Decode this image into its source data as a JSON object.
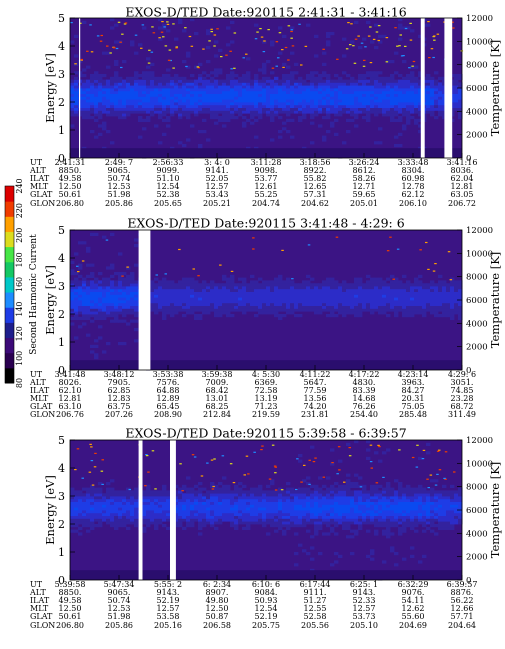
{
  "colorbar": {
    "label": "Second Harmonic Current",
    "ticks": [
      "80",
      "100",
      "120",
      "140",
      "160",
      "180",
      "200",
      "220",
      "240"
    ],
    "colors": [
      "#000000",
      "#2a0050",
      "#3c0a78",
      "#1e1e8c",
      "#1e3ce6",
      "#1e8cff",
      "#00c8c8",
      "#14c864",
      "#46e646",
      "#dcdc1e",
      "#ffa000",
      "#f03c00",
      "#dc0000"
    ]
  },
  "chart_data": [
    {
      "type": "heatmap",
      "title": "EXOS-D/TED   Date:920115  2:41:31 - 3:41:16",
      "ylabel": "Energy [eV]",
      "y2label": "Temperature [K]",
      "ylim": [
        0,
        5
      ],
      "y2lim": [
        0,
        12000
      ],
      "yticks": [
        "0",
        "1",
        "2",
        "3",
        "4",
        "5"
      ],
      "y2ticks": [
        "0",
        "2000",
        "4000",
        "6000",
        "8000",
        "10000",
        "12000"
      ],
      "band_center_eV": 2.2,
      "gaps": [
        [
          2.3,
          2.6
        ],
        [
          89.5,
          90.5
        ],
        [
          95.5,
          97.5
        ]
      ],
      "rows": [
        {
          "label": "UT",
          "values": [
            "2:41:31",
            "2:49: 7",
            "2:56:33",
            "3: 4: 0",
            "3:11:28",
            "3:18:56",
            "3:26:24",
            "3:33:48",
            "3:41:16"
          ]
        },
        {
          "label": "ALT",
          "values": [
            "8850.",
            "9065.",
            "9099.",
            "9141.",
            "9098.",
            "8922.",
            "8612.",
            "8304.",
            "8036."
          ]
        },
        {
          "label": "ILAT",
          "values": [
            "49.58",
            "50.74",
            "51.10",
            "52.05",
            "53.77",
            "55.82",
            "58.26",
            "60.98",
            "62.04"
          ]
        },
        {
          "label": "MLT",
          "values": [
            "12.50",
            "12.53",
            "12.54",
            "12.57",
            "12.61",
            "12.65",
            "12.71",
            "12.78",
            "12.81"
          ]
        },
        {
          "label": "GLAT",
          "values": [
            "50.61",
            "51.98",
            "52.38",
            "53.43",
            "55.25",
            "57.31",
            "59.65",
            "62.12",
            "63.05"
          ]
        },
        {
          "label": "GLON",
          "values": [
            "206.80",
            "205.86",
            "205.65",
            "205.21",
            "204.74",
            "204.62",
            "205.01",
            "206.10",
            "206.72"
          ]
        }
      ]
    },
    {
      "type": "heatmap",
      "title": "EXOS-D/TED   Date:920115  3:41:48 - 4:29: 6",
      "ylabel": "Energy [eV]",
      "y2label": "Temperature [K]",
      "ylim": [
        0,
        5
      ],
      "y2lim": [
        0,
        12000
      ],
      "yticks": [
        "0",
        "1",
        "2",
        "3",
        "4",
        "5"
      ],
      "y2ticks": [
        "0",
        "2000",
        "4000",
        "6000",
        "8000",
        "10000",
        "12000"
      ],
      "band_center_eV": 2.6,
      "gaps": [
        [
          17.5,
          20.5
        ]
      ],
      "rows": [
        {
          "label": "UT",
          "values": [
            "3:41:48",
            "3:48:12",
            "3:53:38",
            "3:59:38",
            "4: 5:30",
            "4:11:22",
            "4:17:22",
            "4:23:14",
            "4:29: 6"
          ]
        },
        {
          "label": "ALT",
          "values": [
            "8026.",
            "7905.",
            "7576.",
            "7009.",
            "6369.",
            "5647.",
            "4830.",
            "3963.",
            "3051."
          ]
        },
        {
          "label": "ILAT",
          "values": [
            "62.10",
            "62.85",
            "64.88",
            "68.42",
            "72.58",
            "77.59",
            "83.39",
            "84.27",
            "74.85"
          ]
        },
        {
          "label": "MLT",
          "values": [
            "12.81",
            "12.83",
            "12.89",
            "13.01",
            "13.19",
            "13.56",
            "14.68",
            "20.31",
            "23.28"
          ]
        },
        {
          "label": "GLAT",
          "values": [
            "63.10",
            "63.75",
            "65.45",
            "68.25",
            "71.23",
            "74.20",
            "76.26",
            "75.05",
            "68.72"
          ]
        },
        {
          "label": "GLON",
          "values": [
            "206.76",
            "207.26",
            "208.90",
            "212.84",
            "219.59",
            "231.81",
            "254.40",
            "285.48",
            "311.49"
          ]
        }
      ]
    },
    {
      "type": "heatmap",
      "title": "EXOS-D/TED   Date:920115  5:39:58 - 6:39:57",
      "ylabel": "Energy [eV]",
      "y2label": "Temperature [K]",
      "ylim": [
        0,
        5
      ],
      "y2lim": [
        0,
        12000
      ],
      "yticks": [
        "0",
        "1",
        "2",
        "3",
        "4",
        "5"
      ],
      "y2ticks": [
        "0",
        "2000",
        "4000",
        "6000",
        "8000",
        "10000",
        "12000"
      ],
      "band_center_eV": 2.6,
      "gaps": [
        [
          17.5,
          18.5
        ],
        [
          25.5,
          27
        ]
      ],
      "rows": [
        {
          "label": "UT",
          "values": [
            "5:39:58",
            "5:47:34",
            "5:55: 2",
            "6: 2:34",
            "6:10: 6",
            "6:17:44",
            "6:25: 1",
            "6:32:29",
            "6:39:57"
          ]
        },
        {
          "label": "ALT",
          "values": [
            "8850.",
            "9065.",
            "9143.",
            "8907.",
            "9084.",
            "9111.",
            "9143.",
            "9076.",
            "8876."
          ]
        },
        {
          "label": "ILAT",
          "values": [
            "49.58",
            "50.74",
            "52.19",
            "49.80",
            "50.93",
            "51.27",
            "52.33",
            "54.11",
            "56.22"
          ]
        },
        {
          "label": "MLT",
          "values": [
            "12.50",
            "12.53",
            "12.57",
            "12.50",
            "12.54",
            "12.55",
            "12.57",
            "12.62",
            "12.66"
          ]
        },
        {
          "label": "GLAT",
          "values": [
            "50.61",
            "51.98",
            "53.58",
            "50.87",
            "52.19",
            "52.58",
            "53.73",
            "55.60",
            "57.71"
          ]
        },
        {
          "label": "GLON",
          "values": [
            "206.80",
            "205.86",
            "205.16",
            "206.58",
            "205.75",
            "205.56",
            "205.10",
            "204.69",
            "204.64"
          ]
        }
      ]
    }
  ]
}
